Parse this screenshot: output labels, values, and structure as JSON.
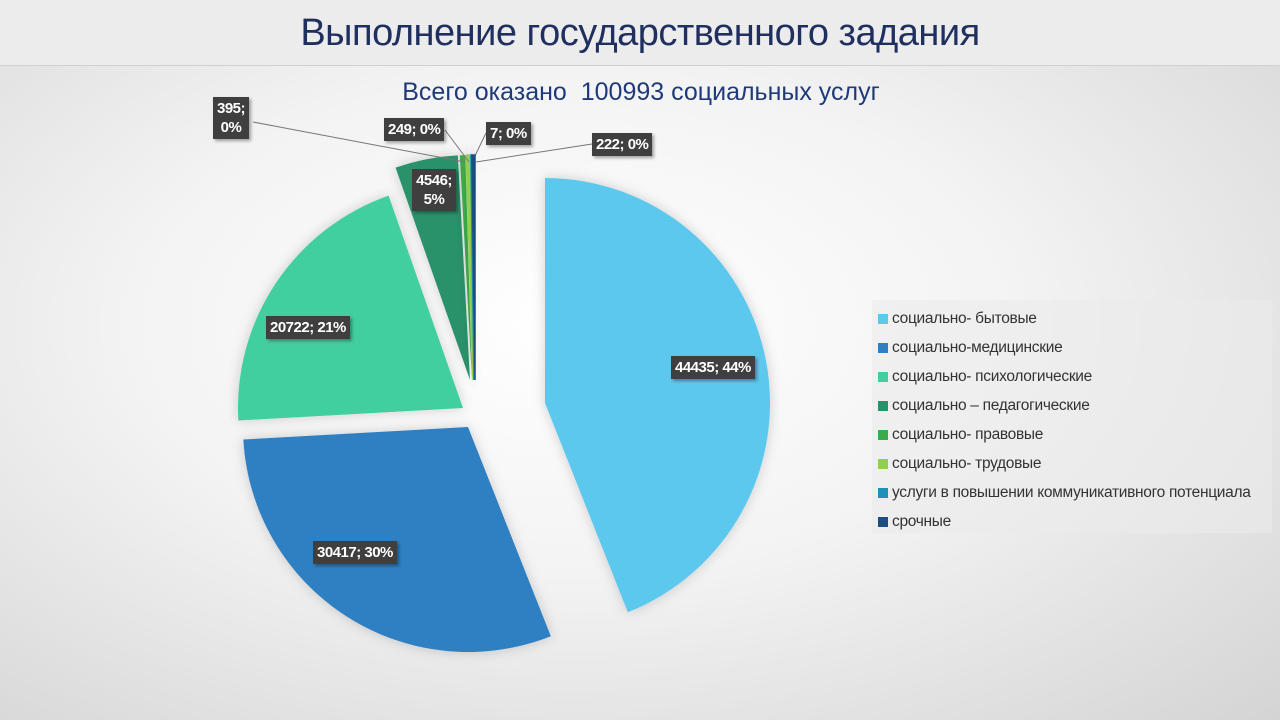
{
  "title": "Выполнение государственного задания",
  "chart_data": {
    "type": "pie",
    "title": "Всего оказано  100993 социальных услуг",
    "total": 100993,
    "legend_position": "right",
    "series": [
      {
        "name": "социально- бытовые",
        "value": 44435,
        "label": "44435; 44%",
        "color": "#5bc8ee"
      },
      {
        "name": "социально-медицинские",
        "value": 30417,
        "label": "30417; 30%",
        "color": "#2e80c2"
      },
      {
        "name": "социально- психологические",
        "value": 20722,
        "label": "20722; 21%",
        "color": "#42cfa0"
      },
      {
        "name": "социально – педагогические",
        "value": 4546,
        "label": "4546; 5%",
        "color": "#2a926a"
      },
      {
        "name": "социально- правовые",
        "value": 395,
        "label": "395; 0%",
        "color": "#3aab4a"
      },
      {
        "name": "социально- трудовые",
        "value": 249,
        "label": "249; 0%",
        "color": "#8fd14f"
      },
      {
        "name": "услуги в повышении коммуникативного потенциала",
        "value": 7,
        "label": "7; 0%",
        "color": "#1f91b8"
      },
      {
        "name": "срочные",
        "value": 222,
        "label": "222; 0%",
        "color": "#1d4e80"
      }
    ]
  }
}
